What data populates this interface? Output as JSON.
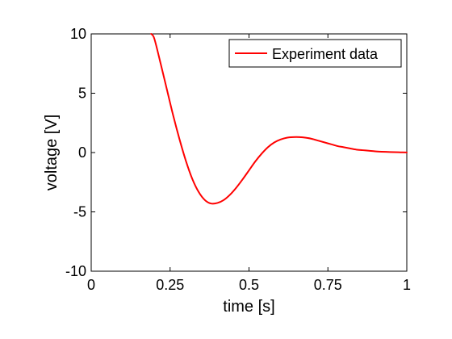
{
  "chart_data": {
    "type": "line",
    "xlabel": "time [s]",
    "ylabel": "voltage [V]",
    "xlim": [
      0,
      1
    ],
    "ylim": [
      -10,
      10
    ],
    "xticks": [
      0,
      0.25,
      0.5,
      0.75,
      1
    ],
    "xtick_labels": [
      "0",
      "0.25",
      "0.5",
      "0.75",
      "1"
    ],
    "yticks": [
      -10,
      -5,
      0,
      5,
      10
    ],
    "ytick_labels": [
      "-10",
      "-5",
      "0",
      "5",
      "10"
    ],
    "grid": false,
    "legend": {
      "position": "top-right",
      "entries": [
        "Experiment data"
      ]
    },
    "series": [
      {
        "name": "Experiment data",
        "color": "#ff0000",
        "x": [
          0.19,
          0.2,
          0.22,
          0.24,
          0.26,
          0.28,
          0.3,
          0.32,
          0.34,
          0.36,
          0.38,
          0.4,
          0.42,
          0.44,
          0.46,
          0.48,
          0.5,
          0.52,
          0.54,
          0.56,
          0.58,
          0.6,
          0.62,
          0.64,
          0.66,
          0.68,
          0.7,
          0.72,
          0.74,
          0.76,
          0.78,
          0.8,
          0.82,
          0.84,
          0.86,
          0.88,
          0.9,
          0.92,
          0.94,
          0.96,
          0.98,
          1.0
        ],
        "y": [
          10.0,
          9.6,
          7.5,
          5.3,
          3.1,
          1.1,
          -0.7,
          -2.2,
          -3.3,
          -4.0,
          -4.3,
          -4.25,
          -4.0,
          -3.55,
          -2.95,
          -2.25,
          -1.5,
          -0.75,
          -0.1,
          0.45,
          0.85,
          1.1,
          1.25,
          1.3,
          1.3,
          1.25,
          1.15,
          1.0,
          0.85,
          0.7,
          0.55,
          0.45,
          0.35,
          0.25,
          0.2,
          0.15,
          0.1,
          0.07,
          0.05,
          0.03,
          0.02,
          0.01
        ]
      }
    ]
  }
}
